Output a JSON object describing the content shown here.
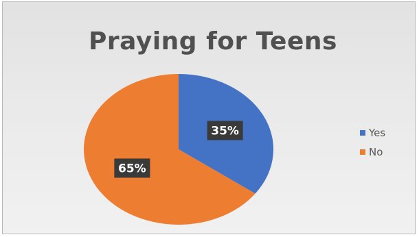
{
  "chart_data": {
    "type": "pie",
    "title": "Praying for Teens",
    "categories": [
      "Yes",
      "No"
    ],
    "values": [
      35,
      65
    ],
    "value_labels": [
      "35%",
      "65%"
    ],
    "colors": [
      "#4472c4",
      "#ed7d31"
    ],
    "legend_position": "right"
  },
  "legend": {
    "items": [
      {
        "label": "Yes",
        "color": "#4472c4"
      },
      {
        "label": "No",
        "color": "#ed7d31"
      }
    ]
  }
}
